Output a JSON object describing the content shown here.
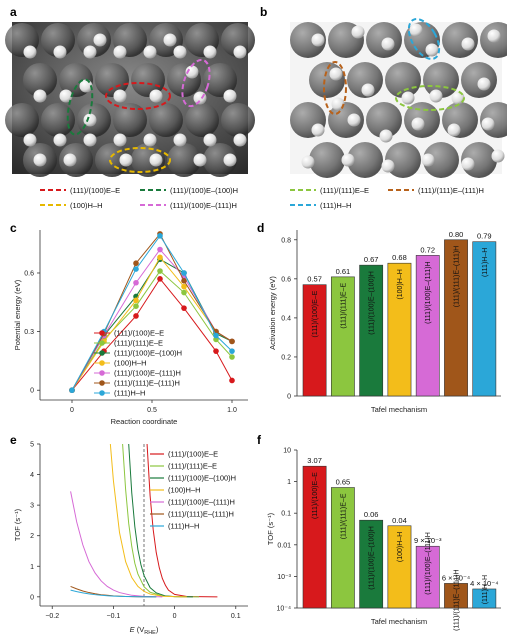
{
  "panels": {
    "a": {
      "letter": "a",
      "legend": [
        {
          "label": "(111)/(100)E–E",
          "color": "#d7191c"
        },
        {
          "label": "(111)/(100)E–(100)H",
          "color": "#1a7a3c"
        },
        {
          "label": "(100)H–H",
          "color": "#e6b800"
        },
        {
          "label": "(111)/(100)E–(111)H",
          "color": "#d66ad6"
        }
      ]
    },
    "b": {
      "letter": "b",
      "legend": [
        {
          "label": "(111)/(111)E–E",
          "color": "#8cc63f"
        },
        {
          "label": "(111)/(111)E–(111)H",
          "color": "#b8621b"
        },
        {
          "label": "(111)H–H",
          "color": "#2ba7d8"
        }
      ]
    }
  },
  "series_colors": {
    "(111)/(100)E–E": "#d7191c",
    "(111)/(111)E–E": "#8cc63f",
    "(111)/(100)E–(100)H": "#1a7a3c",
    "(100)H–H": "#f3bd1a",
    "(111)/(100)E–(111)H": "#d66ad6",
    "(111)/(111)E–(111)H": "#a0561a",
    "(111)H–H": "#2ba7d8"
  },
  "chart_data": [
    {
      "panel": "c",
      "type": "line",
      "xlabel": "Reaction coordinate",
      "ylabel": "Potential energy (eV)",
      "xlim": [
        -0.2,
        1.1
      ],
      "ylim": [
        -0.05,
        0.82
      ],
      "xticks": [
        0,
        0.5,
        1.0
      ],
      "xtick_labels": [
        "0",
        "0.5",
        "1.0"
      ],
      "yticks": [
        0,
        0.3,
        0.6
      ],
      "ytick_labels": [
        "0",
        "0.3",
        "0.6"
      ],
      "x": [
        0,
        0.2,
        0.4,
        0.55,
        0.7,
        0.9,
        1.0
      ],
      "series": [
        {
          "name": "(111)/(100)E–E",
          "values": [
            0,
            0.2,
            0.38,
            0.57,
            0.42,
            0.2,
            0.05
          ]
        },
        {
          "name": "(111)/(111)E–E",
          "values": [
            0,
            0.26,
            0.43,
            0.61,
            0.5,
            0.26,
            0.17
          ]
        },
        {
          "name": "(111)/(100)E–(100)H",
          "values": [
            0,
            0.28,
            0.48,
            0.67,
            0.6,
            0.29,
            0.25
          ]
        },
        {
          "name": "(100)H–H",
          "values": [
            0,
            0.25,
            0.46,
            0.68,
            0.53,
            0.3,
            0.25
          ]
        },
        {
          "name": "(111)/(100)E–(111)H",
          "values": [
            0,
            0.28,
            0.55,
            0.72,
            0.58,
            0.3,
            0.25
          ]
        },
        {
          "name": "(111)/(111)E–(111)H",
          "values": [
            0,
            0.29,
            0.65,
            0.8,
            0.56,
            0.3,
            0.25
          ]
        },
        {
          "name": "(111)H–H",
          "values": [
            0,
            0.3,
            0.62,
            0.79,
            0.6,
            0.28,
            0.2
          ]
        }
      ]
    },
    {
      "panel": "d",
      "type": "bar",
      "xlabel": "Tafel mechanism",
      "ylabel": "Activation energy (eV)",
      "ylim": [
        0,
        0.85
      ],
      "yticks": [
        0,
        0.2,
        0.4,
        0.6,
        0.8
      ],
      "ytick_labels": [
        "0",
        "0.2",
        "0.4",
        "0.6",
        "0.8"
      ],
      "categories": [
        "(111)/(100)E–E",
        "(111)/(111)E–E",
        "(111)/(100)E–(100)H",
        "(100)H–H",
        "(111)/(100)E–(111)H",
        "(111)/(111)E–(111)H",
        "(111)H–H"
      ],
      "values": [
        0.57,
        0.61,
        0.67,
        0.68,
        0.72,
        0.8,
        0.79
      ],
      "value_labels": [
        "0.57",
        "0.61",
        "0.67",
        "0.68",
        "0.72",
        "0.80",
        "0.79"
      ]
    },
    {
      "panel": "e",
      "type": "line",
      "xlabel_base": "E (V",
      "xlabel_sub": "RHE",
      "xlabel_end": ")",
      "ylabel": "TOF (s⁻¹)",
      "xlim": [
        -0.22,
        0.12
      ],
      "ylim": [
        -0.3,
        5
      ],
      "xticks": [
        -0.2,
        -0.1,
        0,
        0.1
      ],
      "xtick_labels": [
        "−0.2",
        "−0.1",
        "0",
        "0.1"
      ],
      "yticks": [
        0,
        1,
        2,
        3,
        4,
        5
      ],
      "ytick_labels": [
        "0",
        "1",
        "2",
        "3",
        "4",
        "5"
      ],
      "reference_line_x": -0.05,
      "series": [
        {
          "name": "(111)/(100)E–E",
          "x": [
            -0.045,
            -0.04,
            -0.035,
            -0.03,
            -0.025,
            -0.02,
            -0.015,
            -0.01,
            0.0,
            0.02,
            0.07
          ],
          "values": [
            5,
            3.3,
            2.2,
            1.45,
            0.95,
            0.6,
            0.38,
            0.22,
            0.08,
            0.01,
            0
          ]
        },
        {
          "name": "(111)/(111)E–E",
          "x": [
            -0.085,
            -0.08,
            -0.075,
            -0.07,
            -0.065,
            -0.06,
            -0.05,
            -0.04,
            -0.02,
            0.0,
            0.04
          ],
          "values": [
            5,
            3.5,
            2.4,
            1.65,
            1.1,
            0.75,
            0.33,
            0.15,
            0.03,
            0.005,
            0
          ]
        },
        {
          "name": "(111)/(100)E–(100)H",
          "x": [
            -0.075,
            -0.07,
            -0.065,
            -0.06,
            -0.055,
            -0.05,
            -0.04,
            -0.03,
            -0.015,
            0.0,
            0.03
          ],
          "values": [
            5,
            3.4,
            2.3,
            1.55,
            1.05,
            0.7,
            0.3,
            0.13,
            0.03,
            0.005,
            0
          ]
        },
        {
          "name": "(100)H–H",
          "x": [
            -0.105,
            -0.1,
            -0.09,
            -0.08,
            -0.07,
            -0.06,
            -0.05,
            -0.04,
            -0.02,
            0.0,
            0.02
          ],
          "values": [
            5,
            3.8,
            2.1,
            1.15,
            0.63,
            0.34,
            0.18,
            0.09,
            0.02,
            0.005,
            0
          ]
        },
        {
          "name": "(111)/(100)E–(111)H",
          "x": [
            -0.17,
            -0.16,
            -0.15,
            -0.14,
            -0.13,
            -0.12,
            -0.11,
            -0.1,
            -0.09,
            -0.07,
            -0.05,
            -0.02
          ],
          "values": [
            3.45,
            2.45,
            1.7,
            1.15,
            0.78,
            0.52,
            0.34,
            0.22,
            0.14,
            0.05,
            0.015,
            0
          ]
        },
        {
          "name": "(111)/(111)E–(111)H",
          "x": [
            -0.17,
            -0.16,
            -0.15,
            -0.14,
            -0.13,
            -0.12,
            -0.11,
            -0.1,
            -0.08,
            -0.06,
            -0.03
          ],
          "values": [
            0.34,
            0.26,
            0.19,
            0.14,
            0.1,
            0.07,
            0.05,
            0.03,
            0.012,
            0.004,
            0
          ]
        },
        {
          "name": "(111)H–H",
          "x": [
            -0.17,
            -0.16,
            -0.15,
            -0.14,
            -0.13,
            -0.12,
            -0.11,
            -0.1,
            -0.08,
            -0.06,
            -0.03
          ],
          "values": [
            0.22,
            0.17,
            0.13,
            0.095,
            0.07,
            0.05,
            0.035,
            0.025,
            0.01,
            0.003,
            0
          ]
        }
      ]
    },
    {
      "panel": "f",
      "type": "bar",
      "xlabel": "Tafel mechanism",
      "ylabel": "TOF (s⁻¹)",
      "yscale": "log",
      "ylim": [
        0.0001,
        10
      ],
      "ytick_labels": [
        "10",
        "1",
        "0.1",
        "0.01",
        "10⁻³",
        "10⁻⁴"
      ],
      "yticks": [
        10,
        1,
        0.1,
        0.01,
        0.001,
        0.0001
      ],
      "categories": [
        "(111)/(100)E–E",
        "(111)/(111)E–E",
        "(111)/(100)E–(100)H",
        "(100)H–H",
        "(111)/(100)E–(111)H",
        "(111)/(111)E–(111)H",
        "(111)H–H"
      ],
      "values": [
        3.07,
        0.65,
        0.06,
        0.04,
        0.009,
        0.0006,
        0.0004
      ],
      "value_labels": [
        "3.07",
        "0.65",
        "0.06",
        "0.04",
        "9 × 10⁻³",
        "6 × 10⁻⁴",
        "4 × 10⁻⁴"
      ]
    }
  ]
}
